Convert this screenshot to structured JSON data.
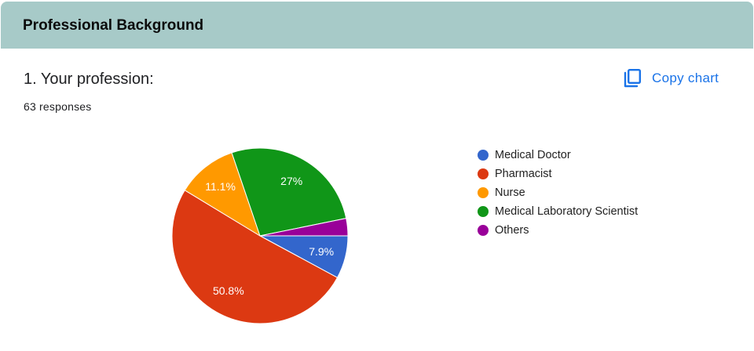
{
  "section": {
    "title": "Professional Background"
  },
  "question": {
    "title": "1. Your profession:",
    "responses": "63 responses"
  },
  "copy_chart": {
    "label": "Copy chart",
    "icon": "copy-icon",
    "color": "#1a73e8"
  },
  "chart_data": {
    "type": "pie",
    "title": "",
    "slices": [
      {
        "label": "Medical Doctor",
        "value": 7.9,
        "display": "7.9%",
        "color": "#3366cc"
      },
      {
        "label": "Pharmacist",
        "value": 50.8,
        "display": "50.8%",
        "color": "#dc3912"
      },
      {
        "label": "Nurse",
        "value": 11.1,
        "display": "11.1%",
        "color": "#ff9900"
      },
      {
        "label": "Medical Laboratory Scientist",
        "value": 27.0,
        "display": "27%",
        "color": "#109618"
      },
      {
        "label": "Others",
        "value": 3.2,
        "display": "",
        "color": "#990099"
      }
    ],
    "start_angle": "3 o'clock",
    "direction": "clockwise",
    "legend_position": "right"
  }
}
